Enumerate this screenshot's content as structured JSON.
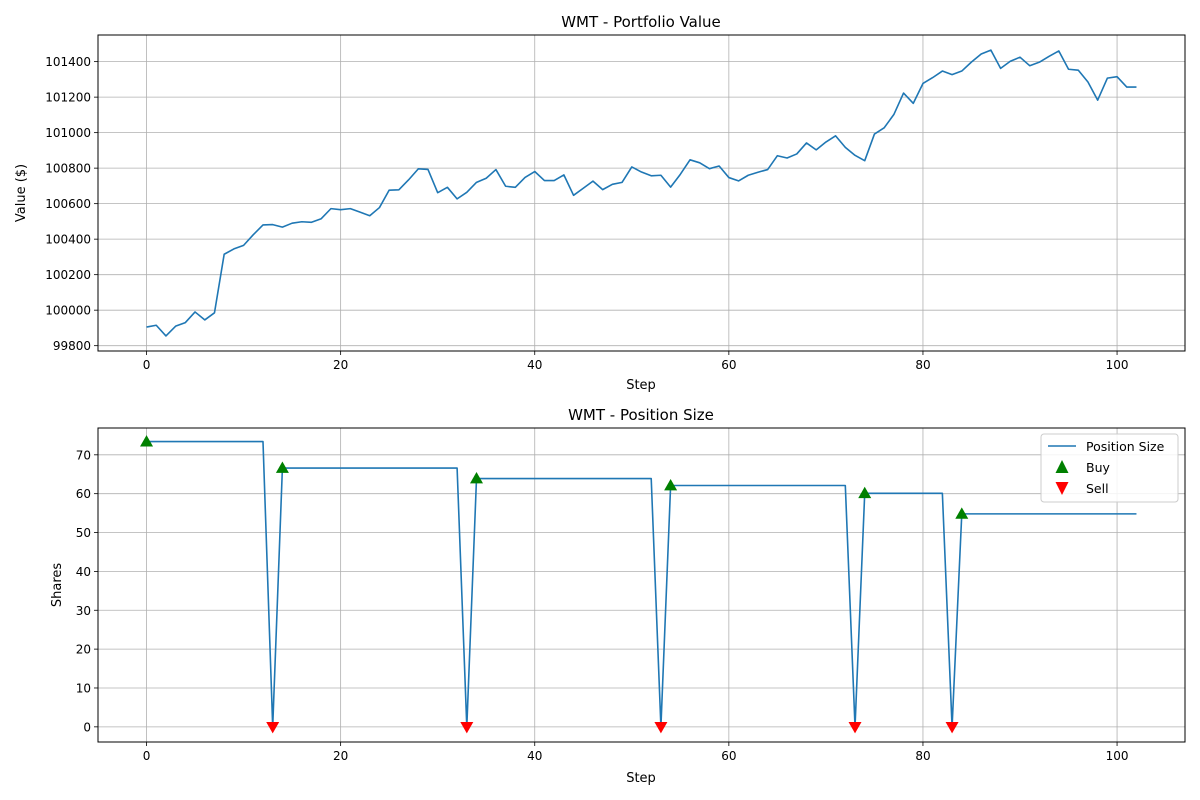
{
  "chart_data": [
    {
      "type": "line",
      "title": "WMT - Portfolio Value",
      "xlabel": "Step",
      "ylabel": "Value ($)",
      "xlim": [
        -5,
        107
      ],
      "ylim": [
        99770,
        101550
      ],
      "grid": true,
      "x_ticks": [
        0,
        20,
        40,
        60,
        80,
        100
      ],
      "y_ticks": [
        99800,
        100000,
        100200,
        100400,
        100600,
        100800,
        101000,
        101200,
        101400
      ],
      "colors": {
        "line": "#1f77b4"
      },
      "series": [
        {
          "values": [
            99905,
            99915,
            99855,
            99910,
            99930,
            99990,
            99945,
            99985,
            100315,
            100345,
            100365,
            100425,
            100480,
            100482,
            100468,
            100490,
            100498,
            100495,
            100515,
            100572,
            100566,
            100572,
            100552,
            100532,
            100578,
            100676,
            100678,
            100734,
            100796,
            100793,
            100662,
            100692,
            100627,
            100664,
            100720,
            100743,
            100792,
            100698,
            100692,
            100748,
            100781,
            100730,
            100730,
            100762,
            100647,
            100687,
            100727,
            100679,
            100709,
            100720,
            100807,
            100778,
            100757,
            100760,
            100693,
            100765,
            100847,
            100830,
            100797,
            100812,
            100747,
            100728,
            100760,
            100777,
            100792,
            100870,
            100857,
            100880,
            100942,
            100903,
            100947,
            100982,
            100917,
            100872,
            100842,
            100992,
            101027,
            101102,
            101223,
            101165,
            101277,
            101310,
            101347,
            101327,
            101347,
            101398,
            101443,
            101465,
            101362,
            101402,
            101425,
            101377,
            101397,
            101430,
            101460,
            101357,
            101352,
            101285,
            101183,
            101307,
            101315,
            101257,
            101257
          ]
        }
      ]
    },
    {
      "type": "line",
      "title": "WMT - Position Size",
      "xlabel": "Step",
      "ylabel": "Shares",
      "xlim": [
        -5,
        107
      ],
      "ylim": [
        -3.9,
        76.9
      ],
      "grid": true,
      "legend": "top-right",
      "x_ticks": [
        0,
        20,
        40,
        60,
        80,
        100
      ],
      "y_ticks": [
        0,
        10,
        20,
        30,
        40,
        50,
        60,
        70
      ],
      "colors": {
        "line": "#1f77b4",
        "buy": "#008000",
        "sell": "#ff0000"
      },
      "series": [
        {
          "name": "Position Size",
          "points": [
            [
              0,
              73.4
            ],
            [
              12,
              73.4
            ],
            [
              13,
              0
            ],
            [
              14,
              66.6
            ],
            [
              32,
              66.6
            ],
            [
              33,
              0
            ],
            [
              34,
              63.9
            ],
            [
              52,
              63.9
            ],
            [
              53,
              0
            ],
            [
              54,
              62.1
            ],
            [
              72,
              62.1
            ],
            [
              73,
              0
            ],
            [
              74,
              60.1
            ],
            [
              82,
              60.1
            ],
            [
              83,
              0
            ],
            [
              84,
              54.8
            ],
            [
              102,
              54.8
            ]
          ]
        }
      ],
      "markers": {
        "buy": {
          "name": "Buy",
          "points": [
            [
              0,
              73.4
            ],
            [
              14,
              66.6
            ],
            [
              34,
              63.9
            ],
            [
              54,
              62.1
            ],
            [
              74,
              60.1
            ],
            [
              84,
              54.8
            ]
          ]
        },
        "sell": {
          "name": "Sell",
          "points": [
            [
              13,
              0
            ],
            [
              33,
              0
            ],
            [
              53,
              0
            ],
            [
              73,
              0
            ],
            [
              83,
              0
            ]
          ]
        }
      }
    }
  ]
}
